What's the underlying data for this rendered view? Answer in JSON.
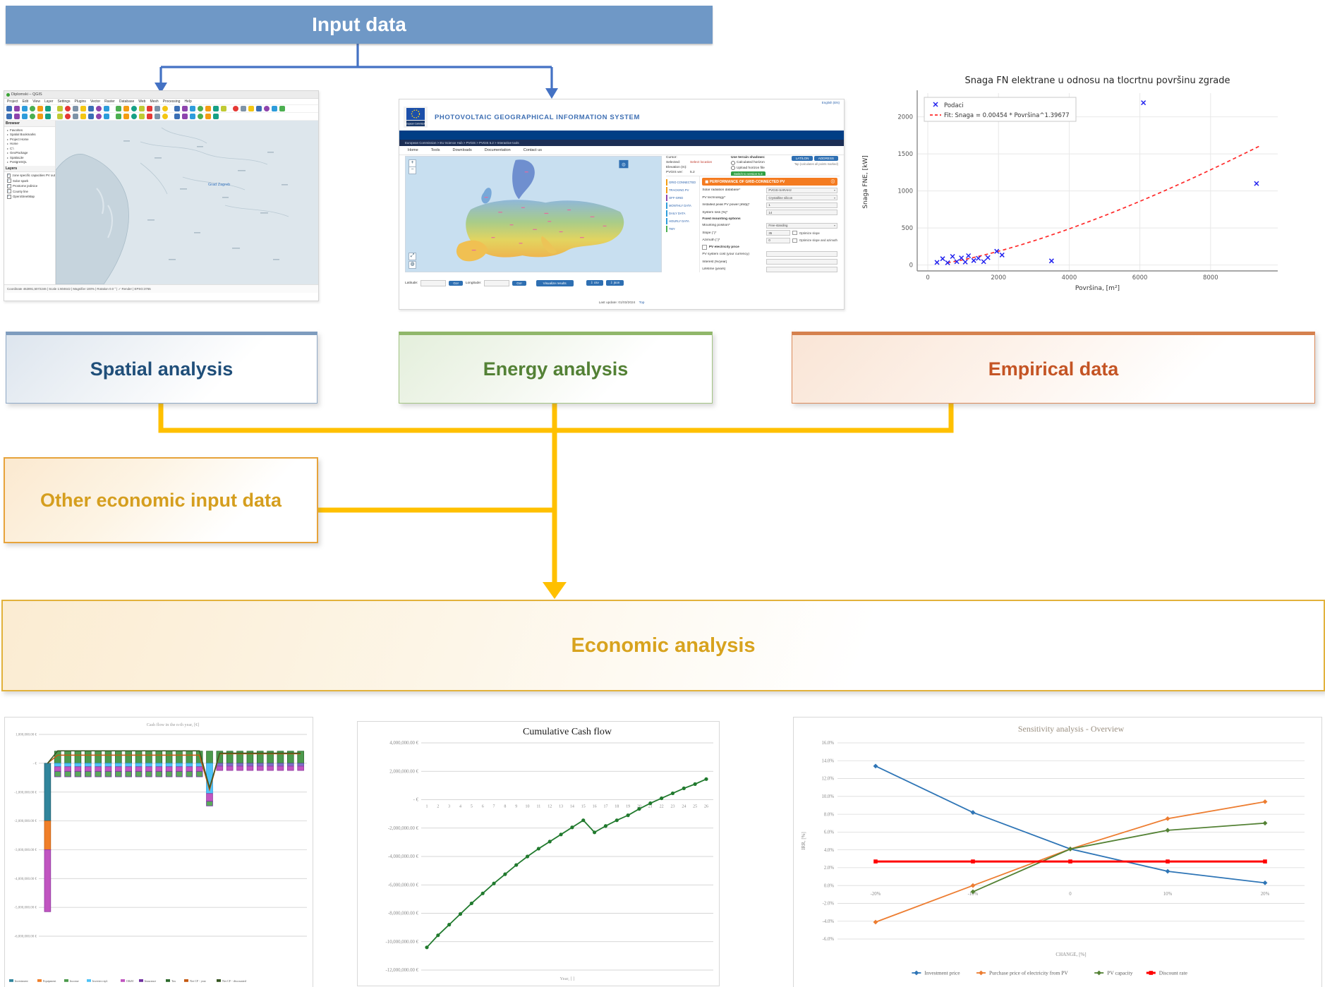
{
  "icons": {
    "info": "ⓘ",
    "panel": "▦",
    "globe": "◍",
    "download": "⇩",
    "zoom_in": "+",
    "zoom_out": "−",
    "expand": "⤢"
  },
  "flow": {
    "input": {
      "label": "Input data"
    },
    "spatial": {
      "label": "Spatial analysis"
    },
    "energy": {
      "label": "Energy analysis"
    },
    "empirical": {
      "label": "Empirical data"
    },
    "other": {
      "label": "Other economic input data"
    },
    "economic": {
      "label": "Economic analysis"
    }
  },
  "colors": {
    "input_fill": "#6F98C6",
    "arrow_blue": "#4472C4",
    "connector_gold": "#FFC000",
    "spatial_text": "#1F4E79",
    "energy_text": "#538135",
    "empirical_text": "#C45424",
    "gold_text": "#D59E1E"
  },
  "qgis": {
    "window_title": "Diplomski – QGIS",
    "menu": [
      "Project",
      "Edit",
      "View",
      "Layer",
      "Settings",
      "Plugins",
      "Vector",
      "Raster",
      "Database",
      "Web",
      "Mesh",
      "Processing",
      "Help"
    ],
    "browser_title": "Browser",
    "browser_items": [
      "Favorites",
      "Spatial Bookmarks",
      "Project Home",
      "Home",
      "C:\\",
      "GeoPackage",
      "SpatiaLite",
      "PostgreSQL"
    ],
    "layers_title": "Layers",
    "layers": [
      "zone specific capacities PV out",
      "Solar spark",
      "Prostorne jedinice",
      "County line",
      "OpenStreetMap"
    ],
    "map_label": "Grad Zagreb",
    "statusbar": "Coordinate 462891,5072246  |  Scale 1:604642  |  Magnifier 100%  |  Rotation 0.0 °  |  ✓ Render  |  EPSG:3765",
    "toolbar_palette": [
      "#3b6fb5",
      "#f3c613",
      "#4caf50",
      "#e53935",
      "#8e44ad",
      "#16a085",
      "#f39c12",
      "#7e93a8",
      "#2d9cdb",
      "#c0ca33"
    ],
    "toolbar_counts": [
      34,
      26
    ]
  },
  "pvgis": {
    "lang": "English (EN)",
    "logo_caption": "European Commission",
    "title": "PHOTOVOLTAIC GEOGRAPHICAL INFORMATION SYSTEM",
    "breadcrumb": "European Commission  >  EU Science Hub  >  PVGIS  >  PVGIS 5.2  >  Interactive tools",
    "nav": [
      "Home",
      "Tools",
      "Downloads",
      "Documentation",
      "Contact us"
    ],
    "info_labels": [
      "Cursor:",
      "Selected:",
      "Elevation (m):",
      "PVGIS ver:"
    ],
    "info_version": "5.2",
    "select_location": "Select location",
    "shadows_title": "Use terrain shadows:",
    "shadows_opt1": "Calculated horizon",
    "shadows_opt2": "Upload horizon file",
    "version_button": "Switch to version 5.3",
    "btn_latlon": "LAT/LON",
    "btn_address": "ADDRESS",
    "side_note": "Tap (calculates all points marked)",
    "tabs": [
      "GRID CONNECTED",
      "TRACKING PV",
      "OFF-GRID",
      "MONTHLY DATA",
      "DAILY DATA",
      "HOURLY DATA",
      "TMY"
    ],
    "tab_colors": [
      "#f39c12",
      "#f39c12",
      "#8e44ad",
      "#2d9cdb",
      "#2d9cdb",
      "#2d9cdb",
      "#4caf50"
    ],
    "panel_title": "PERFORMANCE OF GRID-CONNECTED PV",
    "form": [
      {
        "label": "Solar radiation database*",
        "value": "PVGIS-SARAH2",
        "type": "select"
      },
      {
        "label": "PV technology*",
        "value": "Crystalline silicon",
        "type": "select"
      },
      {
        "label": "Installed peak PV power [kWp]*",
        "value": "1",
        "type": "input"
      },
      {
        "label": "System loss [%]*",
        "value": "14",
        "type": "input"
      },
      {
        "label": "Fixed mounting options",
        "value": "",
        "type": "head"
      },
      {
        "label": "Mounting position*",
        "value": "Free-standing",
        "type": "select"
      },
      {
        "label": "Slope [°]*",
        "value": "35",
        "type": "optinput",
        "opt": "Optimize slope"
      },
      {
        "label": "Azimuth [°]*",
        "value": "0",
        "type": "optinput",
        "opt": "Optimize slope and azimuth"
      },
      {
        "label": "PV electricity price",
        "value": "",
        "type": "check"
      },
      {
        "label": "PV system cost (your currency)",
        "value": "",
        "type": "input"
      },
      {
        "label": "Interest [%/year]",
        "value": "",
        "type": "input"
      },
      {
        "label": "Lifetime (years)",
        "value": "",
        "type": "input"
      }
    ],
    "lat_label": "Latitude:",
    "lon_label": "Longitude:",
    "go": "Go!",
    "visualize": "Visualize results",
    "csv": "csv",
    "json": "json",
    "footer": "Last update: 01/03/2024",
    "top_link": "Top"
  },
  "chart_data": [
    {
      "id": "pv-scatter",
      "type": "scatter",
      "title": "Snaga FN elektrane u odnosu na tlocrtnu površinu zgrade",
      "xlabel": "Površina, [m²]",
      "ylabel": "Snaga FNE, [kW]",
      "xlim": [
        -300,
        9900
      ],
      "ylim": [
        -80,
        2320
      ],
      "xticks": [
        0,
        2000,
        4000,
        6000,
        8000
      ],
      "yticks": [
        0,
        500,
        1000,
        1500,
        2000
      ],
      "legend": [
        "Podaci",
        "Fit: Snaga = 0.00454 * Površina^1.39677"
      ],
      "point_color": "#2222ee",
      "fit_color": "#ff2a2a",
      "points": [
        [
          260,
          35
        ],
        [
          420,
          85
        ],
        [
          560,
          30
        ],
        [
          700,
          115
        ],
        [
          820,
          45
        ],
        [
          950,
          95
        ],
        [
          1060,
          40
        ],
        [
          1150,
          125
        ],
        [
          1300,
          60
        ],
        [
          1430,
          90
        ],
        [
          1580,
          45
        ],
        [
          1700,
          100
        ],
        [
          1950,
          185
        ],
        [
          2100,
          135
        ],
        [
          3500,
          55
        ],
        [
          6100,
          2190
        ],
        [
          9300,
          1100
        ]
      ],
      "fit": {
        "a": 0.00454,
        "b": 1.39677,
        "x_from": 550,
        "x_to": 9420
      }
    },
    {
      "id": "cashflow",
      "type": "bar",
      "title": "Cash flow in the n-th year, [€]",
      "ylim_millions": [
        1,
        -6
      ],
      "ytick_labels": [
        "1,000,000.00 €",
        "- €",
        "-1,000,000.00 €",
        "-2,000,000.00 €",
        "-3,000,000.00 €",
        "-4,000,000.00 €",
        "-5,000,000.00 €",
        "-6,000,000.00 €"
      ],
      "years": 26,
      "palette": {
        "teal": {
          "fill": "#31859C",
          "edge": "#1f5e70"
        },
        "orange": {
          "fill": "#F07F29",
          "edge": "#c15e12"
        },
        "green": {
          "fill": "#4C9A4C",
          "edge": "#2E6B2E"
        },
        "greenp": {
          "fill": "#5aa85a",
          "edge": "#7030A0"
        },
        "cyan": {
          "fill": "#4FC3F7",
          "edge": "#2d9cdb"
        },
        "magenta": {
          "fill": "#C155C1",
          "edge": "#8e3a9e"
        },
        "violet": {
          "fill": "#8070C8",
          "edge": "#5b4ba0"
        }
      },
      "bar_groups": [
        {
          "from": 0,
          "to": 0,
          "segments": [
            {
              "color": "teal",
              "value": -2.0
            },
            {
              "color": "orange",
              "value": -1.0
            },
            {
              "color": "magenta",
              "value": -2.15
            }
          ]
        },
        {
          "from": 1,
          "to": 15,
          "segments": [
            {
              "color": "green",
              "value": 0.42
            },
            {
              "color": "cyan",
              "value": -0.12
            },
            {
              "color": "magenta",
              "value": -0.16
            },
            {
              "color": "greenp",
              "value": -0.19
            }
          ]
        },
        {
          "from": 16,
          "to": 16,
          "segments": [
            {
              "color": "green",
              "value": 0.42
            },
            {
              "color": "cyan",
              "value": -1.05
            },
            {
              "color": "magenta",
              "value": -0.27
            },
            {
              "color": "greenp",
              "value": -0.16
            }
          ]
        },
        {
          "from": 17,
          "to": 25,
          "segments": [
            {
              "color": "green",
              "value": 0.42
            },
            {
              "color": "violet",
              "value": -0.1
            },
            {
              "color": "magenta",
              "value": -0.15
            }
          ]
        }
      ],
      "lines": [
        {
          "name": "Net cash flow - year",
          "color": "#C55A11",
          "segments": [
            {
              "from": 0,
              "to": 0,
              "v": 0
            },
            {
              "from": 1,
              "to": 15,
              "v": 0.28
            },
            {
              "from": 16,
              "to": 16,
              "v": -0.92
            },
            {
              "from": 17,
              "to": 25,
              "v": 0.33
            }
          ]
        },
        {
          "name": "Net cash flow - discounted",
          "color": "#375623",
          "segments": [
            {
              "from": 0,
              "to": 0,
              "v": 0
            },
            {
              "from": 1,
              "to": 15,
              "v": 0.43
            },
            {
              "from": 16,
              "to": 16,
              "v": -0.85
            },
            {
              "from": 17,
              "to": 25,
              "v": 0.35
            }
          ]
        }
      ],
      "legend": [
        {
          "label": "Investment",
          "color": "#31859C"
        },
        {
          "label": "Equipment",
          "color": "#F07F29"
        },
        {
          "label": "Income",
          "color": "#4C9A4C"
        },
        {
          "label": "Inverter repl.",
          "color": "#4FC3F7"
        },
        {
          "label": "O&M",
          "color": "#C155C1"
        },
        {
          "label": "Insurance",
          "color": "#7030A0"
        },
        {
          "label": "Tax",
          "color": "#2E6B2E"
        },
        {
          "label": "Net CF - year",
          "color": "#C55A11"
        },
        {
          "label": "Net CF - discounted",
          "color": "#375623"
        }
      ]
    },
    {
      "id": "cumulative",
      "type": "line",
      "title": "Cumulative Cash flow",
      "xlabel": "Year, [ ]",
      "line_color": "#217A2E",
      "ylim_millions": [
        4,
        -12
      ],
      "ytick_labels": [
        "4,000,000.00 €",
        "2,000,000.00 €",
        "- €",
        "-2,000,000.00 €",
        "-4,000,000.00 €",
        "-6,000,000.00 €",
        "-8,000,000.00 €",
        "-10,000,000.00 €",
        "-12,000,000.00 €"
      ],
      "years": 26,
      "values_millions": [
        -10.4,
        -9.55,
        -8.8,
        -8.05,
        -7.3,
        -6.6,
        -5.9,
        -5.25,
        -4.6,
        -4.0,
        -3.45,
        -2.95,
        -2.45,
        -1.95,
        -1.45,
        -2.3,
        -1.85,
        -1.45,
        -1.1,
        -0.65,
        -0.25,
        0.1,
        0.45,
        0.8,
        1.1,
        1.45
      ]
    },
    {
      "id": "sensitivity",
      "type": "line",
      "title": "Sensitivity analysis - Overview",
      "xlabel": "CHANGE, [%]",
      "ylabel": "IRR, [%]",
      "ylim": [
        16,
        -6
      ],
      "ytick_labels": [
        "16.0%",
        "14.0%",
        "12.0%",
        "10.0%",
        "8.0%",
        "6.0%",
        "4.0%",
        "2.0%",
        "0.0%",
        "-2.0%",
        "-4.0%",
        "-6.0%"
      ],
      "xticks": [
        -20,
        -10,
        0,
        10,
        20
      ],
      "xtick_labels": [
        "-20%",
        "-10%",
        "0",
        "10%",
        "20%"
      ],
      "series": [
        {
          "name": "Investment price",
          "color": "#2E75B6",
          "marker": "d",
          "width": 1.8,
          "x": [
            -20,
            -10,
            0,
            10,
            20
          ],
          "y": [
            13.4,
            8.2,
            4.1,
            1.6,
            0.3
          ]
        },
        {
          "name": "Purchase price of electricity from PV",
          "color": "#ED7D31",
          "marker": "d",
          "width": 1.8,
          "x": [
            -20,
            -10,
            0,
            10,
            20
          ],
          "y": [
            -4.1,
            0.0,
            4.1,
            7.5,
            9.4
          ]
        },
        {
          "name": "PV capacity",
          "color": "#548235",
          "marker": "d",
          "width": 1.8,
          "x": [
            -10,
            0,
            10,
            20
          ],
          "y": [
            -0.7,
            4.1,
            6.2,
            7.0
          ]
        },
        {
          "name": "Discount rate",
          "color": "#FF0000",
          "marker": "s",
          "width": 3,
          "x": [
            -20,
            -10,
            0,
            10,
            20
          ],
          "y": [
            2.7,
            2.7,
            2.7,
            2.7,
            2.7
          ]
        }
      ]
    }
  ]
}
